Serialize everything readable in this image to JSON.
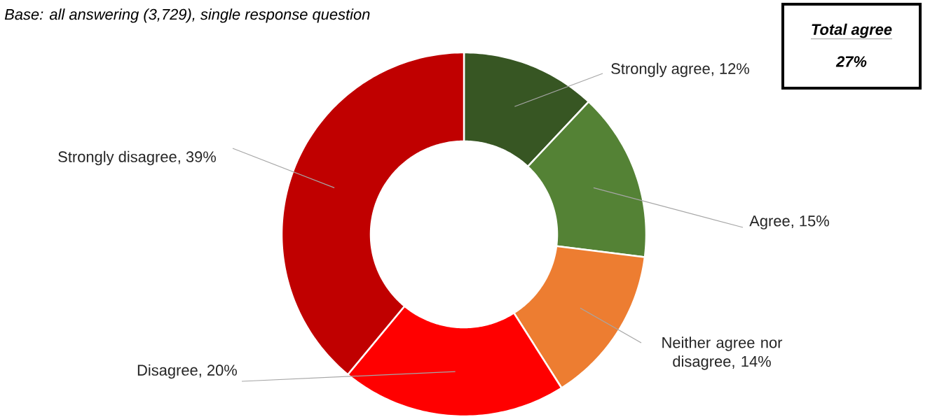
{
  "chart_data": {
    "type": "donut",
    "categories": [
      "Strongly agree",
      "Agree",
      "Neither agree nor disagree",
      "Disagree",
      "Strongly disagree"
    ],
    "values": [
      12,
      15,
      14,
      20,
      39
    ],
    "value_labels": [
      ", 12%",
      ", 15%",
      ", 14%",
      ", 20%",
      ", 39%"
    ],
    "colors": [
      "#375623",
      "#548235",
      "#ed7d31",
      "#ff0000",
      "#c00000"
    ],
    "annotations": [
      "Base: all answering (3,729), single response question",
      "Total agree",
      "27%"
    ]
  }
}
